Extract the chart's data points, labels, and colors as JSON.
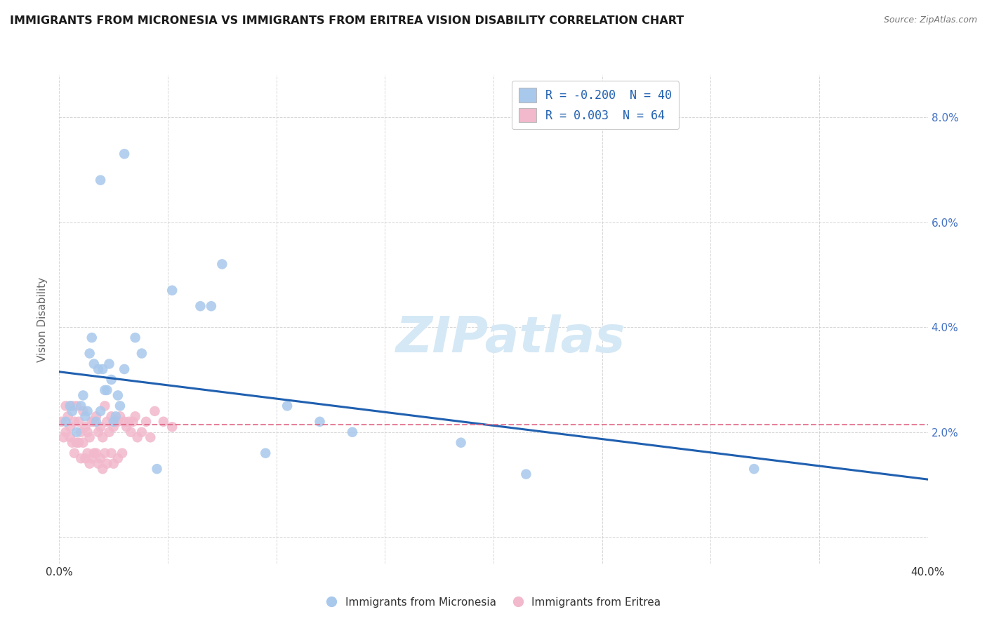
{
  "title": "IMMIGRANTS FROM MICRONESIA VS IMMIGRANTS FROM ERITREA VISION DISABILITY CORRELATION CHART",
  "source": "Source: ZipAtlas.com",
  "ylabel": "Vision Disability",
  "xlim": [
    0.0,
    0.4
  ],
  "ylim": [
    -0.005,
    0.088
  ],
  "xtick_vals": [
    0.0,
    0.05,
    0.1,
    0.15,
    0.2,
    0.25,
    0.3,
    0.35,
    0.4
  ],
  "xtick_labels": [
    "0.0%",
    "",
    "",
    "",
    "",
    "",
    "",
    "",
    "40.0%"
  ],
  "ytick_vals": [
    0.0,
    0.02,
    0.04,
    0.06,
    0.08
  ],
  "right_ytick_labels": [
    "",
    "2.0%",
    "4.0%",
    "6.0%",
    "8.0%"
  ],
  "legend_blue_R": "-0.200",
  "legend_blue_N": "40",
  "legend_pink_R": " 0.003",
  "legend_pink_N": "64",
  "blue_scatter_color": "#A8C8EC",
  "pink_scatter_color": "#F2B8CC",
  "blue_line_color": "#2060B0",
  "pink_line_color": "#E06080",
  "watermark_text": "ZIPatlas",
  "watermark_color": "#D5E8F5",
  "title_fontsize": 11.5,
  "axis_label_color": "#4472C4",
  "micronesia_x": [
    0.019,
    0.03,
    0.052,
    0.065,
    0.07,
    0.075,
    0.003,
    0.005,
    0.006,
    0.008,
    0.01,
    0.011,
    0.012,
    0.013,
    0.014,
    0.015,
    0.016,
    0.017,
    0.018,
    0.019,
    0.02,
    0.021,
    0.022,
    0.023,
    0.024,
    0.025,
    0.026,
    0.027,
    0.028,
    0.03,
    0.035,
    0.038,
    0.045,
    0.215,
    0.32,
    0.185,
    0.135,
    0.12,
    0.095,
    0.105
  ],
  "micronesia_y": [
    0.068,
    0.073,
    0.047,
    0.044,
    0.044,
    0.052,
    0.022,
    0.025,
    0.024,
    0.02,
    0.025,
    0.027,
    0.023,
    0.024,
    0.035,
    0.038,
    0.033,
    0.022,
    0.032,
    0.024,
    0.032,
    0.028,
    0.028,
    0.033,
    0.03,
    0.022,
    0.023,
    0.027,
    0.025,
    0.032,
    0.038,
    0.035,
    0.013,
    0.012,
    0.013,
    0.018,
    0.02,
    0.022,
    0.016,
    0.025
  ],
  "eritrea_x": [
    0.001,
    0.002,
    0.003,
    0.003,
    0.004,
    0.005,
    0.005,
    0.006,
    0.006,
    0.007,
    0.007,
    0.008,
    0.008,
    0.009,
    0.009,
    0.01,
    0.01,
    0.011,
    0.011,
    0.012,
    0.012,
    0.013,
    0.013,
    0.014,
    0.014,
    0.015,
    0.015,
    0.016,
    0.016,
    0.017,
    0.017,
    0.018,
    0.018,
    0.019,
    0.019,
    0.02,
    0.02,
    0.021,
    0.021,
    0.022,
    0.022,
    0.023,
    0.024,
    0.024,
    0.025,
    0.025,
    0.026,
    0.027,
    0.027,
    0.028,
    0.029,
    0.03,
    0.031,
    0.032,
    0.033,
    0.034,
    0.035,
    0.036,
    0.038,
    0.04,
    0.042,
    0.044,
    0.048,
    0.052
  ],
  "eritrea_y": [
    0.022,
    0.019,
    0.025,
    0.02,
    0.023,
    0.021,
    0.019,
    0.025,
    0.018,
    0.022,
    0.016,
    0.025,
    0.018,
    0.022,
    0.018,
    0.02,
    0.015,
    0.024,
    0.018,
    0.021,
    0.015,
    0.02,
    0.016,
    0.019,
    0.014,
    0.022,
    0.015,
    0.022,
    0.016,
    0.023,
    0.016,
    0.02,
    0.014,
    0.021,
    0.015,
    0.019,
    0.013,
    0.025,
    0.016,
    0.022,
    0.014,
    0.02,
    0.023,
    0.016,
    0.021,
    0.014,
    0.022,
    0.022,
    0.015,
    0.023,
    0.016,
    0.022,
    0.021,
    0.022,
    0.02,
    0.022,
    0.023,
    0.019,
    0.02,
    0.022,
    0.019,
    0.024,
    0.022,
    0.021
  ],
  "blue_line_x": [
    0.0,
    0.4
  ],
  "blue_line_y": [
    0.0315,
    0.011
  ],
  "pink_line_x": [
    0.0,
    0.4
  ],
  "pink_line_y": [
    0.0215,
    0.0215
  ]
}
